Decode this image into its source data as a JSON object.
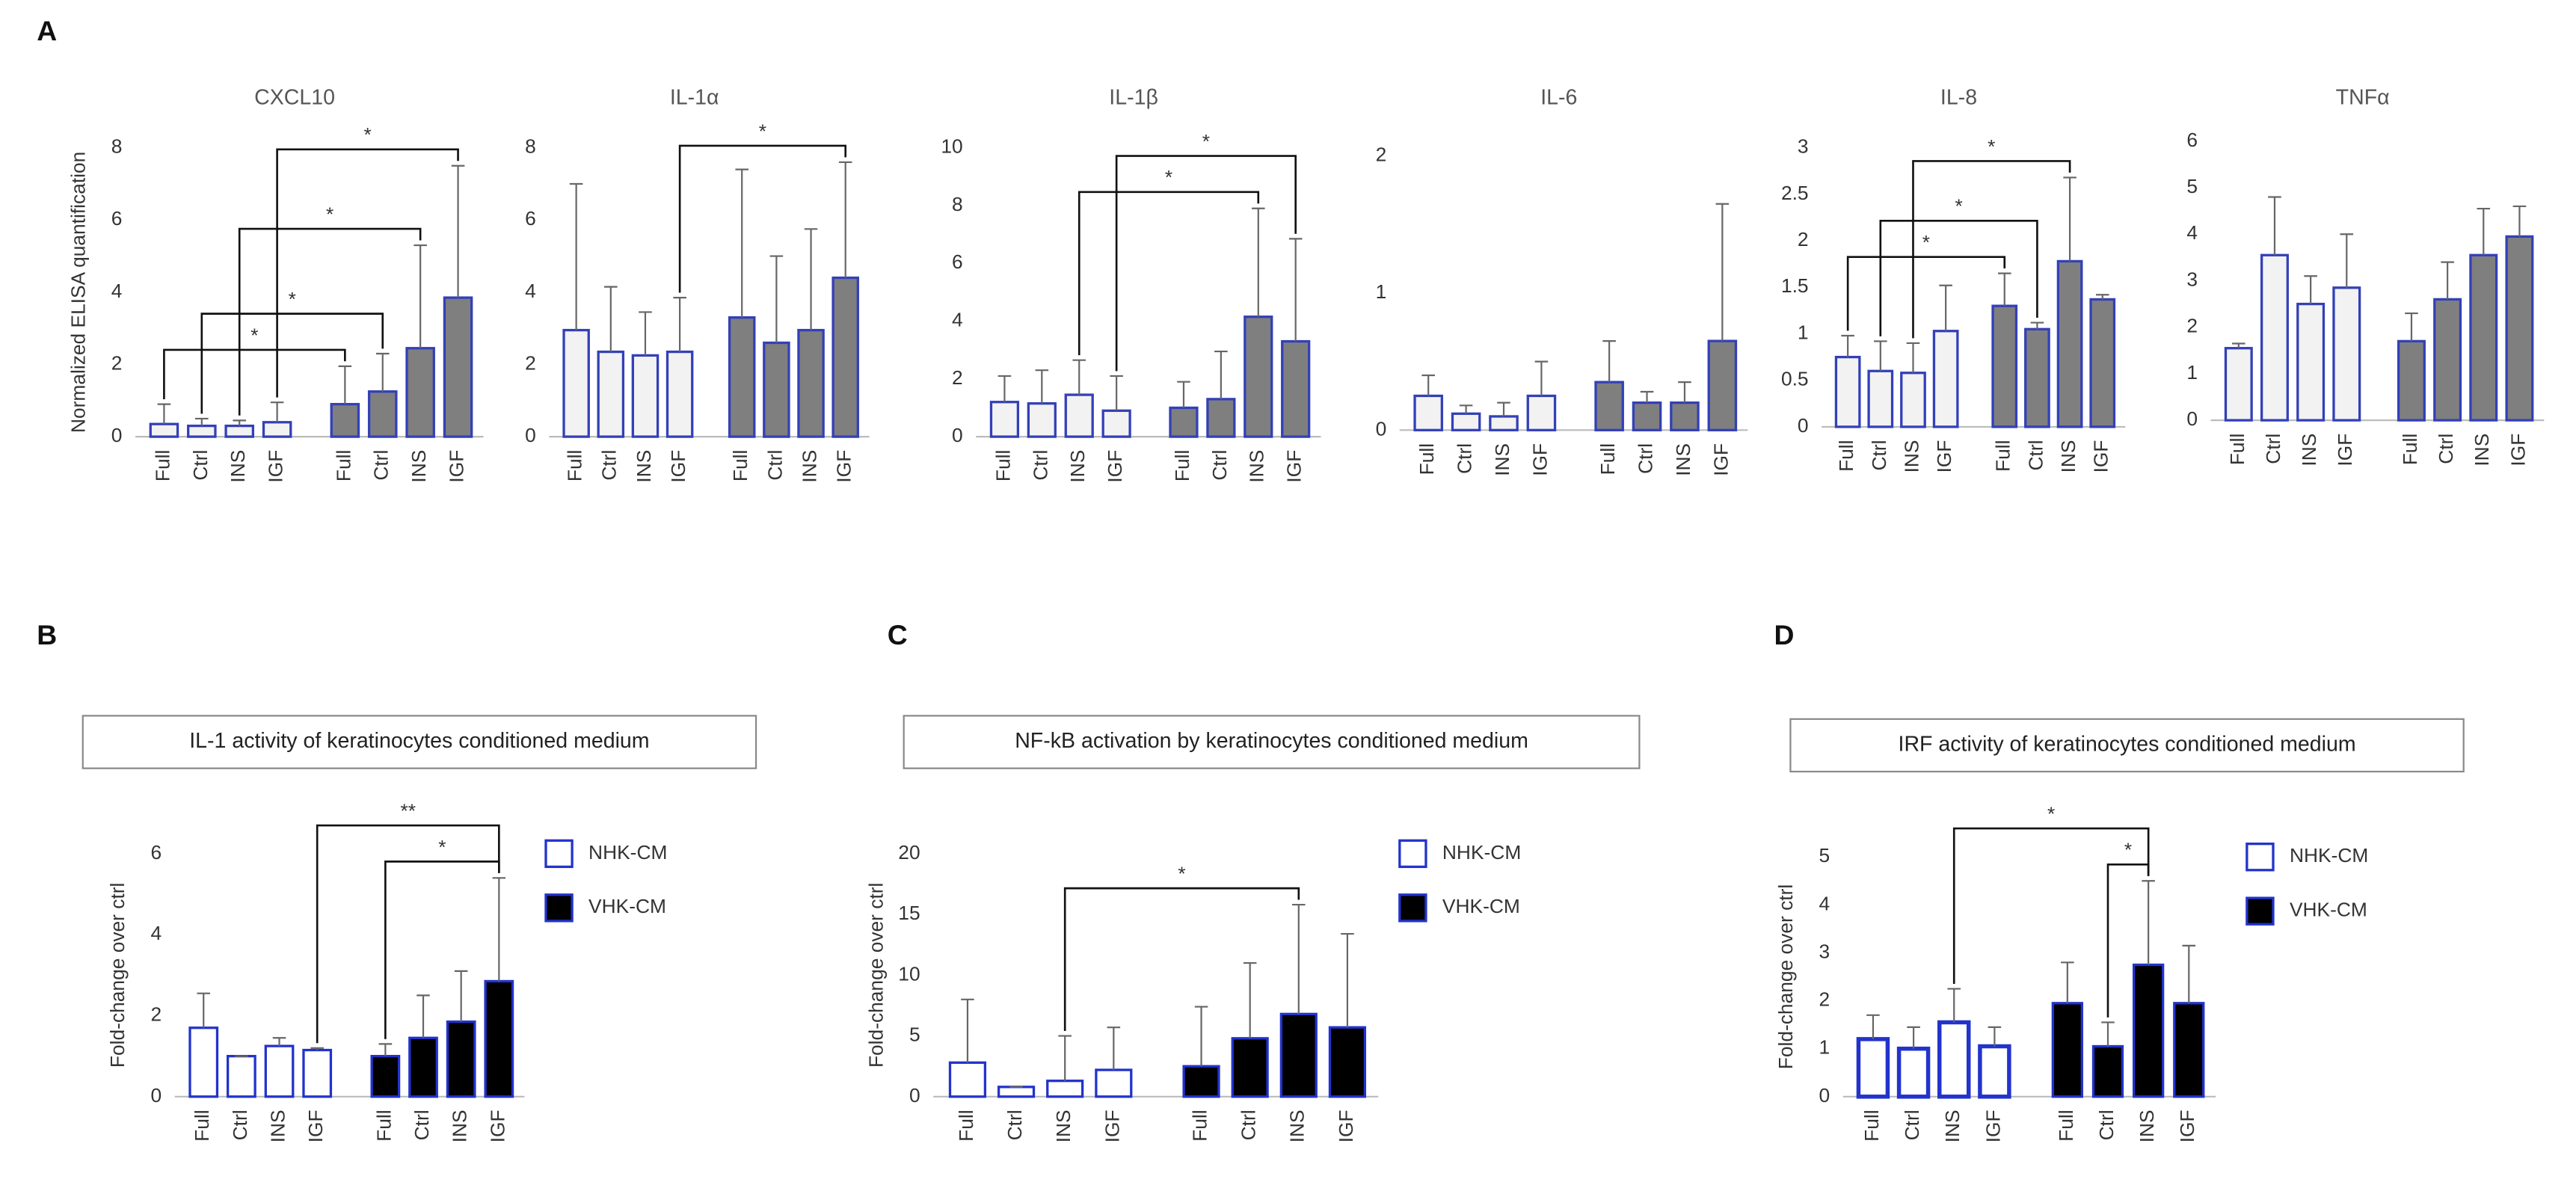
{
  "panel_labels": [
    "A",
    "B",
    "C",
    "D"
  ],
  "chart_data": [
    {
      "type": "bar",
      "title": "CXCL10",
      "ylabel": "Normalized ELISA quantification",
      "categories": [
        "Full",
        "Ctrl",
        "INS",
        "IGF"
      ],
      "series": [
        {
          "color": "#f2f2f2",
          "edgecolor": "#3340b8",
          "values": [
            0.35,
            0.3,
            0.3,
            0.4
          ],
          "errors": [
            0.55,
            0.2,
            0.15,
            0.55
          ]
        },
        {
          "color": "#7f7f7f",
          "edgecolor": "#3340b8",
          "values": [
            0.9,
            1.25,
            2.45,
            3.85
          ],
          "errors": [
            1.05,
            1.05,
            2.85,
            3.65
          ]
        }
      ],
      "ylim": [
        0,
        8
      ],
      "yticks": [
        0,
        2,
        4,
        6,
        8
      ],
      "brackets": [
        {
          "label": "*",
          "from": [
            0,
            0
          ],
          "to": [
            1,
            0
          ]
        },
        {
          "label": "*",
          "from": [
            0,
            1
          ],
          "to": [
            1,
            1
          ]
        },
        {
          "label": "*",
          "from": [
            0,
            2
          ],
          "to": [
            1,
            2
          ]
        },
        {
          "label": "*",
          "from": [
            0,
            3
          ],
          "to": [
            1,
            3
          ]
        }
      ]
    },
    {
      "type": "bar",
      "title": "IL-1α",
      "categories": [
        "Full",
        "Ctrl",
        "INS",
        "IGF"
      ],
      "series": [
        {
          "color": "#f2f2f2",
          "edgecolor": "#3340b8",
          "values": [
            2.95,
            2.35,
            2.25,
            2.35
          ],
          "errors": [
            4.05,
            1.8,
            1.2,
            1.5
          ]
        },
        {
          "color": "#7f7f7f",
          "edgecolor": "#3340b8",
          "values": [
            3.3,
            2.6,
            2.95,
            4.4
          ],
          "errors": [
            4.1,
            2.4,
            2.8,
            3.2
          ]
        }
      ],
      "ylim": [
        0,
        8
      ],
      "yticks": [
        0,
        2,
        4,
        6,
        8
      ],
      "brackets": [
        {
          "label": "*",
          "from": [
            0,
            3
          ],
          "to": [
            1,
            3
          ]
        }
      ]
    },
    {
      "type": "bar",
      "title": "IL-1β",
      "categories": [
        "Full",
        "Ctrl",
        "INS",
        "IGF"
      ],
      "series": [
        {
          "color": "#f2f2f2",
          "edgecolor": "#3340b8",
          "values": [
            1.2,
            1.15,
            1.45,
            0.9
          ],
          "errors": [
            0.9,
            1.15,
            1.2,
            1.2
          ]
        },
        {
          "color": "#7f7f7f",
          "edgecolor": "#3340b8",
          "values": [
            1.0,
            1.3,
            4.15,
            3.3
          ],
          "errors": [
            0.9,
            1.65,
            3.75,
            3.55
          ]
        }
      ],
      "ylim": [
        0,
        10
      ],
      "yticks": [
        0,
        2,
        4,
        6,
        8,
        10
      ],
      "brackets": [
        {
          "label": "*",
          "from": [
            0,
            2
          ],
          "to": [
            1,
            2
          ]
        },
        {
          "label": "*",
          "from": [
            0,
            3
          ],
          "to": [
            1,
            3
          ]
        }
      ]
    },
    {
      "type": "bar",
      "title": "IL-6",
      "categories": [
        "Full",
        "Ctrl",
        "INS",
        "IGF"
      ],
      "series": [
        {
          "color": "#f2f2f2",
          "edgecolor": "#3340b8",
          "values": [
            0.25,
            0.12,
            0.1,
            0.25
          ],
          "errors": [
            0.15,
            0.06,
            0.1,
            0.25
          ]
        },
        {
          "color": "#7f7f7f",
          "edgecolor": "#3340b8",
          "values": [
            0.35,
            0.2,
            0.2,
            0.65
          ],
          "errors": [
            0.3,
            0.08,
            0.15,
            1.0
          ]
        }
      ],
      "ylim": [
        0,
        2
      ],
      "yticks": [
        0,
        1,
        2
      ],
      "brackets": []
    },
    {
      "type": "bar",
      "title": "IL-8",
      "categories": [
        "Full",
        "Ctrl",
        "INS",
        "IGF"
      ],
      "series": [
        {
          "color": "#f2f2f2",
          "edgecolor": "#3340b8",
          "values": [
            0.75,
            0.6,
            0.58,
            1.03
          ],
          "errors": [
            0.23,
            0.32,
            0.32,
            0.49
          ]
        },
        {
          "color": "#7f7f7f",
          "edgecolor": "#3340b8",
          "values": [
            1.3,
            1.05,
            1.78,
            1.37
          ],
          "errors": [
            0.35,
            0.07,
            0.9,
            0.05
          ]
        }
      ],
      "ylim": [
        0,
        3
      ],
      "yticks": [
        0,
        0.5,
        1,
        1.5,
        2,
        2.5,
        3
      ],
      "brackets": [
        {
          "label": "*",
          "from": [
            0,
            0
          ],
          "to": [
            1,
            0
          ]
        },
        {
          "label": "*",
          "from": [
            0,
            1
          ],
          "to": [
            1,
            1
          ]
        },
        {
          "label": "*",
          "from": [
            0,
            2
          ],
          "to": [
            1,
            2
          ]
        }
      ]
    },
    {
      "type": "bar",
      "title": "TNFα",
      "categories": [
        "Full",
        "Ctrl",
        "INS",
        "IGF"
      ],
      "series": [
        {
          "color": "#f2f2f2",
          "edgecolor": "#3340b8",
          "values": [
            1.55,
            3.55,
            2.5,
            2.85
          ],
          "errors": [
            0.1,
            1.25,
            0.6,
            1.15
          ]
        },
        {
          "color": "#7f7f7f",
          "edgecolor": "#3340b8",
          "values": [
            1.7,
            2.6,
            3.55,
            3.95
          ],
          "errors": [
            0.6,
            0.8,
            1.0,
            0.65
          ]
        }
      ],
      "ylim": [
        0,
        6
      ],
      "yticks": [
        0,
        1,
        2,
        3,
        4,
        5,
        6
      ],
      "brackets": []
    },
    {
      "type": "bar",
      "title": "IL-1 activity of keratinocytes conditioned medium",
      "ylabel": "Fold-change over ctrl",
      "categories": [
        "Full",
        "Ctrl",
        "INS",
        "IGF"
      ],
      "series": [
        {
          "name": "NHK-CM",
          "color": "#ffffff",
          "edgecolor": "#2233cc",
          "values": [
            1.7,
            1.0,
            1.25,
            1.15
          ],
          "errors": [
            0.85,
            0,
            0.2,
            0.05
          ]
        },
        {
          "name": "VHK-CM",
          "color": "#000000",
          "edgecolor": "#2233cc",
          "values": [
            1.0,
            1.45,
            1.85,
            2.85
          ],
          "errors": [
            0.3,
            1.05,
            1.25,
            2.55
          ]
        }
      ],
      "ylim": [
        0,
        6
      ],
      "yticks": [
        0,
        2,
        4,
        6
      ],
      "legend": "right",
      "brackets": [
        {
          "label": "*",
          "from": [
            1,
            0
          ],
          "to": [
            1,
            3
          ]
        },
        {
          "label": "**",
          "from": [
            0,
            3
          ],
          "to": [
            1,
            3
          ]
        }
      ]
    },
    {
      "type": "bar",
      "title": "NF-kB activation by keratinocytes conditioned medium",
      "ylabel": "Fold-change over ctrl",
      "categories": [
        "Full",
        "Ctrl",
        "INS",
        "IGF"
      ],
      "series": [
        {
          "name": "NHK-CM",
          "color": "#ffffff",
          "edgecolor": "#2233cc",
          "values": [
            2.8,
            0.8,
            1.3,
            2.2
          ],
          "errors": [
            5.2,
            0,
            3.7,
            3.5
          ]
        },
        {
          "name": "VHK-CM",
          "color": "#000000",
          "edgecolor": "#2233cc",
          "values": [
            2.5,
            4.8,
            6.8,
            5.7
          ],
          "errors": [
            4.9,
            6.2,
            9.0,
            7.7
          ]
        }
      ],
      "ylim": [
        0,
        20
      ],
      "yticks": [
        0,
        5,
        10,
        15,
        20
      ],
      "legend": "right",
      "brackets": [
        {
          "label": "*",
          "from": [
            0,
            2
          ],
          "to": [
            1,
            2
          ]
        }
      ]
    },
    {
      "type": "bar",
      "title": "IRF activity of keratinocytes conditioned medium",
      "ylabel": "Fold-change over ctrl",
      "categories": [
        "Full",
        "Ctrl",
        "INS",
        "IGF"
      ],
      "series": [
        {
          "name": "NHK-CM",
          "color": "#ffffff",
          "edgecolor": "#2233cc",
          "values": [
            1.2,
            1.0,
            1.55,
            1.05
          ],
          "errors": [
            0.5,
            0.45,
            0.7,
            0.4
          ]
        },
        {
          "name": "VHK-CM",
          "color": "#000000",
          "edgecolor": "#2233cc",
          "values": [
            1.95,
            1.05,
            2.75,
            1.95
          ],
          "errors": [
            0.85,
            0.5,
            1.75,
            1.2
          ]
        }
      ],
      "ylim": [
        0,
        5
      ],
      "yticks": [
        0,
        1,
        2,
        3,
        4,
        5
      ],
      "legend": "right",
      "brackets": [
        {
          "label": "*",
          "from": [
            1,
            1
          ],
          "to": [
            1,
            2
          ]
        },
        {
          "label": "*",
          "from": [
            0,
            2
          ],
          "to": [
            1,
            2
          ]
        }
      ]
    }
  ]
}
